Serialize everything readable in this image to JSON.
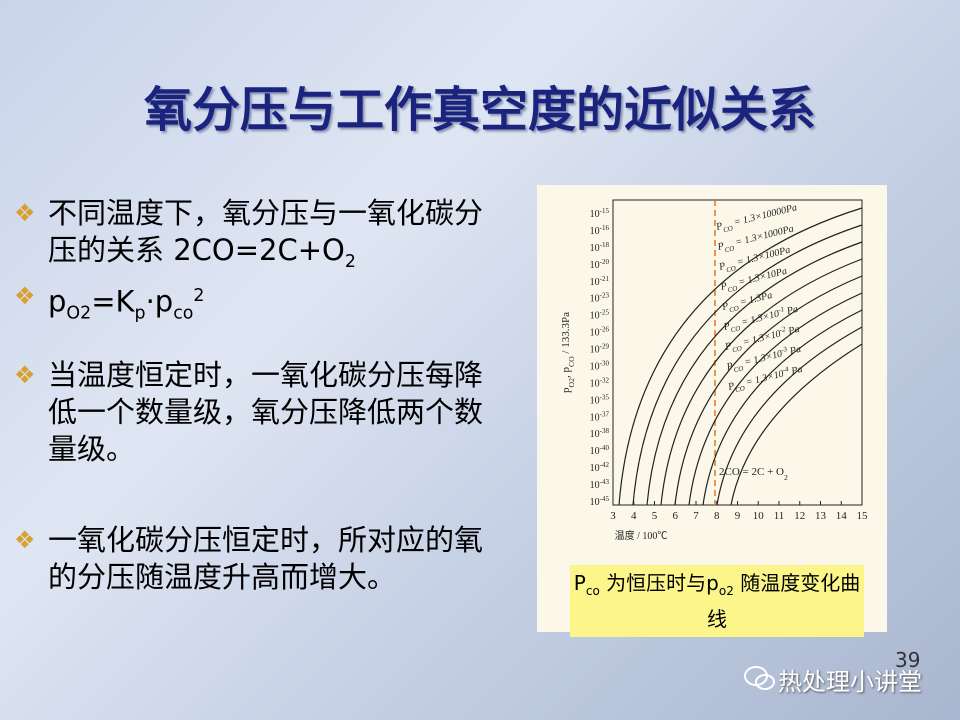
{
  "title": "氧分压与工作真空度的近似关系",
  "bullets": [
    [
      {
        "text": "不同温度下，氧分压与一氧化碳分压的关系  2CO=2C+O"
      },
      {
        "text": "2",
        "pos": "sub"
      }
    ],
    [
      {
        "text": "p"
      },
      {
        "text": "O2",
        "pos": "sub"
      },
      {
        "text": "=K"
      },
      {
        "text": "p",
        "pos": "sub"
      },
      {
        "text": "·p"
      },
      {
        "text": "co",
        "pos": "sub"
      },
      {
        "text": "2",
        "pos": "sup"
      }
    ],
    [
      {
        "text": "当温度恒定时，一氧化碳分压每降低一个数量级，氧分压降低两个数量级。"
      }
    ],
    [
      {
        "text": "一氧化碳分压恒定时，所对应的氧的分压随温度升高而增大。"
      }
    ]
  ],
  "figure": {
    "yticks": [
      {
        "base": "10",
        "exp": "-15"
      },
      {
        "base": "10",
        "exp": "-16"
      },
      {
        "base": "10",
        "exp": "-18"
      },
      {
        "base": "10",
        "exp": "-20"
      },
      {
        "base": "10",
        "exp": "-21"
      },
      {
        "base": "10",
        "exp": "-23"
      },
      {
        "base": "10",
        "exp": "-25"
      },
      {
        "base": "10",
        "exp": "-26"
      },
      {
        "base": "10",
        "exp": "-29"
      },
      {
        "base": "10",
        "exp": "-30"
      },
      {
        "base": "10",
        "exp": "-32"
      },
      {
        "base": "10",
        "exp": "-35"
      },
      {
        "base": "10",
        "exp": "-37"
      },
      {
        "base": "10",
        "exp": "-38"
      },
      {
        "base": "10",
        "exp": "-40"
      },
      {
        "base": "10",
        "exp": "-42"
      },
      {
        "base": "10",
        "exp": "-43"
      },
      {
        "base": "10",
        "exp": "-45"
      }
    ],
    "xticks": [
      3,
      4,
      5,
      6,
      7,
      8,
      9,
      10,
      11,
      12,
      13,
      14,
      15
    ],
    "xlabel": "温度 / 100℃",
    "ylabel": [
      {
        "text": "p"
      },
      {
        "text": "O2",
        "pos": "sub"
      },
      {
        "text": ", p"
      },
      {
        "text": "CO",
        "pos": "sub"
      },
      {
        "text": " / 133.3Pa"
      }
    ],
    "curve_labels": [
      [
        {
          "text": "P"
        },
        {
          "text": "CO",
          "pos": "sub"
        },
        {
          "text": " = 1.3×10000Pa"
        }
      ],
      [
        {
          "text": "P"
        },
        {
          "text": "CO",
          "pos": "sub"
        },
        {
          "text": " = 1.3×1000Pa"
        }
      ],
      [
        {
          "text": "P"
        },
        {
          "text": "CO",
          "pos": "sub"
        },
        {
          "text": " = 1.3×100Pa"
        }
      ],
      [
        {
          "text": "P"
        },
        {
          "text": "CO",
          "pos": "sub"
        },
        {
          "text": " = 1.3×10Pa"
        }
      ],
      [
        {
          "text": "P"
        },
        {
          "text": "CO",
          "pos": "sub"
        },
        {
          "text": " = 1.3Pa"
        }
      ],
      [
        {
          "text": "P"
        },
        {
          "text": "CO",
          "pos": "sub"
        },
        {
          "text": " = 1.3×10"
        },
        {
          "text": "-1",
          "pos": "sup"
        },
        {
          "text": " Pa"
        }
      ],
      [
        {
          "text": "P"
        },
        {
          "text": "CO",
          "pos": "sub"
        },
        {
          "text": " = 1.3×10"
        },
        {
          "text": "-2",
          "pos": "sup"
        },
        {
          "text": " Pa"
        }
      ],
      [
        {
          "text": "P"
        },
        {
          "text": "CO",
          "pos": "sub"
        },
        {
          "text": " = 1.3×10"
        },
        {
          "text": "-3",
          "pos": "sup"
        },
        {
          "text": " Pa"
        }
      ],
      [
        {
          "text": "P"
        },
        {
          "text": "CO",
          "pos": "sub"
        },
        {
          "text": " = 1.3×10"
        },
        {
          "text": "-4",
          "pos": "sup"
        },
        {
          "text": " Pa"
        }
      ]
    ],
    "annotation": [
      {
        "text": "2CO = 2C + O"
      },
      {
        "text": "2",
        "pos": "sub"
      }
    ],
    "caption": [
      {
        "text": "P"
      },
      {
        "text": "co",
        "pos": "sub"
      },
      {
        "text": " 为恒压时与p"
      },
      {
        "text": "o2",
        "pos": "sub"
      },
      {
        "text": " 随温度变化曲线"
      }
    ]
  },
  "page_number": "39",
  "watermark": "热处理小讲堂"
}
